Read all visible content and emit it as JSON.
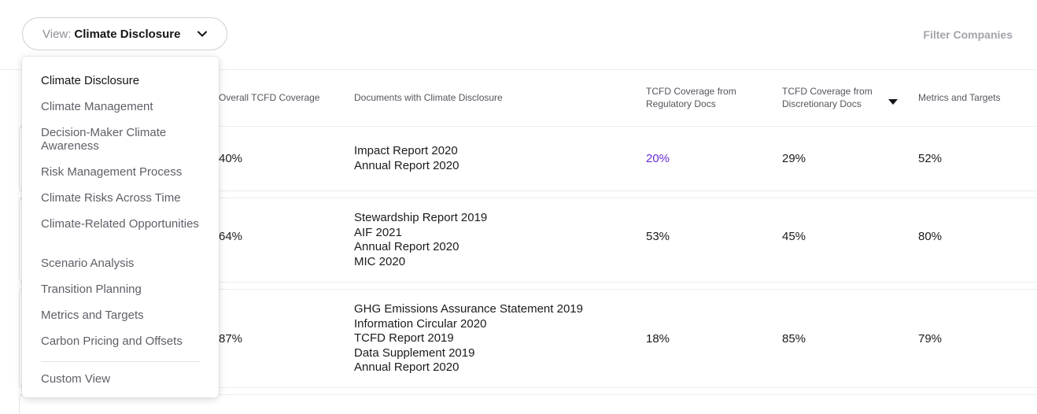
{
  "view_selector": {
    "prefix": "View:",
    "value": "Climate Disclosure"
  },
  "filter_companies": "Filter Companies",
  "table": {
    "headers": {
      "overall": "Overall TCFD Coverage",
      "documents": "Documents with Climate Disclosure",
      "regulatory_line1": "TCFD Coverage from",
      "regulatory_line2": "Regulatory Docs",
      "discretionary_line1": "TCFD Coverage from",
      "discretionary_line2": "Discretionary Docs",
      "metrics": "Metrics and Targets"
    },
    "rows": [
      {
        "overall": "40%",
        "documents": [
          "Impact Report 2020",
          "Annual Report 2020"
        ],
        "regulatory": "20%",
        "discretionary": "29%",
        "metrics": "52%"
      },
      {
        "overall": "64%",
        "documents": [
          "Stewardship Report 2019",
          "AIF 2021",
          "Annual Report 2020",
          "MIC 2020"
        ],
        "regulatory": "53%",
        "discretionary": "45%",
        "metrics": "80%"
      },
      {
        "overall": "87%",
        "documents": [
          "GHG Emissions Assurance Statement 2019",
          "Information Circular 2020",
          "TCFD Report 2019",
          "Data Supplement 2019",
          "Annual Report 2020"
        ],
        "regulatory": "18%",
        "discretionary": "85%",
        "metrics": "79%"
      }
    ]
  },
  "menu": {
    "items": [
      "Climate Disclosure",
      "Climate Management",
      "Decision-Maker Climate Awareness",
      "Risk Management Process",
      "Climate Risks Across Time",
      "Climate-Related Opportunities",
      "Scenario Analysis",
      "Transition Planning",
      "Metrics and Targets",
      "Carbon Pricing and Offsets"
    ],
    "custom": "Custom View"
  },
  "colors": {
    "accent": "#6a2bd9",
    "muted_text": "#5e5e68",
    "border": "#cfcfd6"
  },
  "icons": {
    "view_chevron": "chevron-down-icon",
    "sort": "sort-desc-icon"
  }
}
